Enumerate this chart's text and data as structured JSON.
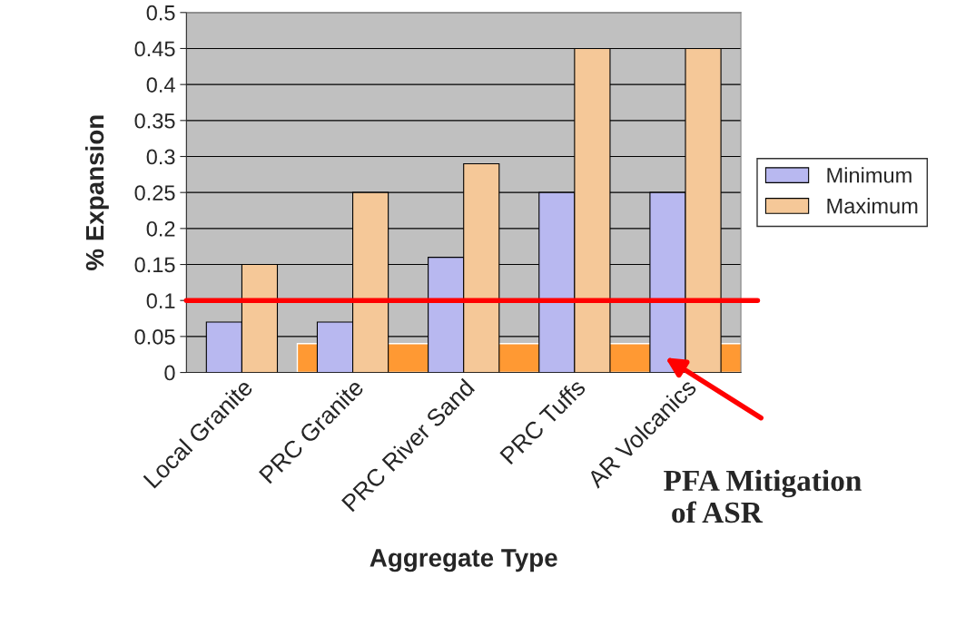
{
  "chart_data": {
    "type": "bar",
    "xlabel": "Aggregate Type",
    "ylabel": "% Expansion",
    "categories": [
      "Local Granite",
      "PRC Granite",
      "PRC River Sand",
      "PRC Tuffs",
      "AR Volcanics"
    ],
    "series": [
      {
        "name": "Minimum",
        "color": "#b8b8f0",
        "values": [
          0.07,
          0.07,
          0.16,
          0.25,
          0.25
        ]
      },
      {
        "name": "Maximum",
        "color": "#f5c898",
        "values": [
          0.15,
          0.25,
          0.29,
          0.45,
          0.45
        ]
      }
    ],
    "ylim": [
      0,
      0.5
    ],
    "yticks": [
      0,
      0.05,
      0.1,
      0.15,
      0.2,
      0.25,
      0.3,
      0.35,
      0.4,
      0.45,
      0.5
    ],
    "ref_lines": [
      {
        "axis": "y",
        "value": 0.1,
        "color": "#ff0000",
        "line_style": "solid"
      }
    ],
    "bands": [
      {
        "axis": "y",
        "from": 0,
        "to": 0.04,
        "color": "#ff9933"
      }
    ],
    "annotations": [
      "PFA Mitigation\n of ASR"
    ],
    "grid": "y",
    "legend": "right"
  }
}
